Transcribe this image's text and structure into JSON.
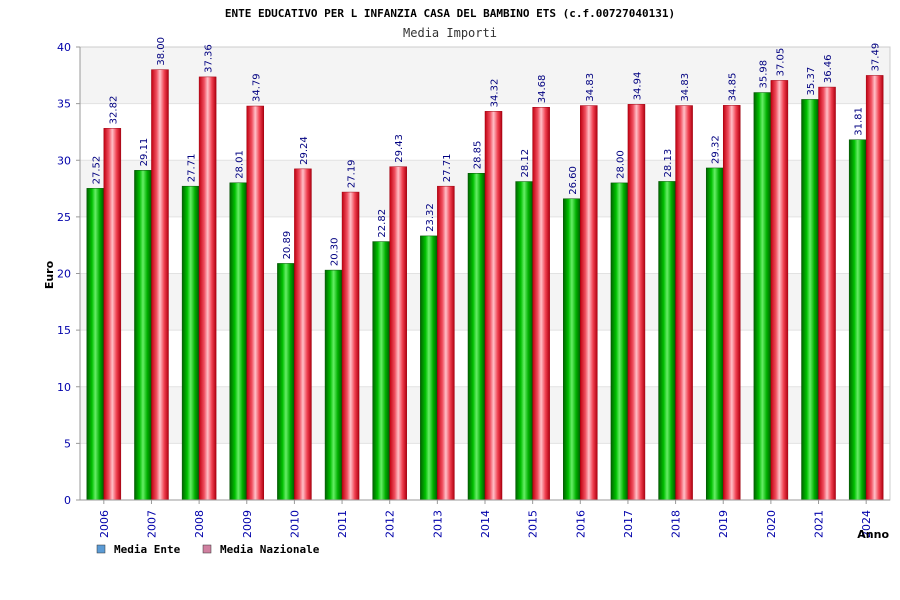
{
  "chart_data": {
    "type": "bar",
    "title": "ENTE EDUCATIVO PER L INFANZIA CASA DEL BAMBINO ETS (c.f.00727040131)",
    "subtitle": "Media Importi",
    "xlabel": "Anno",
    "ylabel": "Euro",
    "ylim": [
      0,
      40
    ],
    "yticks": [
      0,
      5,
      10,
      15,
      20,
      25,
      30,
      35,
      40
    ],
    "grid": true,
    "legend_position": "bottom-left",
    "categories": [
      "2006",
      "2007",
      "2008",
      "2009",
      "2010",
      "2011",
      "2012",
      "2013",
      "2014",
      "2015",
      "2016",
      "2017",
      "2018",
      "2019",
      "2020",
      "2021",
      "2024"
    ],
    "series": [
      {
        "name": "Media Ente",
        "legend_color": "#5b9bd5",
        "bar_color": "#00a000",
        "values": [
          27.52,
          29.11,
          27.71,
          28.01,
          20.89,
          20.3,
          22.82,
          23.32,
          28.85,
          28.12,
          26.6,
          28.0,
          28.13,
          29.32,
          35.98,
          35.37,
          31.81
        ],
        "labels": [
          "27.52",
          "29.11",
          "27.71",
          "28.01",
          "20.89",
          "20.30",
          "22.82",
          "23.32",
          "28.85",
          "28.12",
          "26.60",
          "28.00",
          "28.13",
          "29.32",
          "35.98",
          "35.37",
          "31.81"
        ]
      },
      {
        "name": "Media Nazionale",
        "legend_color": "#d080a0",
        "bar_color": "#e01020",
        "values": [
          32.82,
          38.0,
          37.36,
          34.79,
          29.24,
          27.19,
          29.43,
          27.71,
          34.32,
          34.68,
          34.83,
          34.94,
          34.83,
          34.85,
          37.05,
          36.46,
          37.49
        ],
        "labels": [
          "32.82",
          "38.00",
          "37.36",
          "34.79",
          "29.24",
          "27.19",
          "29.43",
          "27.71",
          "34.32",
          "34.68",
          "34.83",
          "34.94",
          "34.83",
          "34.85",
          "37.05",
          "36.46",
          "37.49"
        ]
      }
    ]
  }
}
